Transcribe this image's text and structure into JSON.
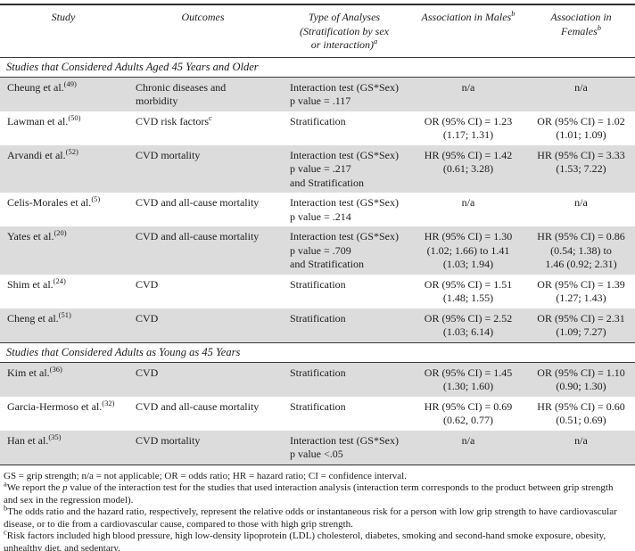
{
  "colors": {
    "row_shade": "#dcdcdc",
    "rule": "#2e2e2e",
    "background": "#ffffff"
  },
  "table": {
    "columns": [
      {
        "lines": [
          "Study"
        ],
        "sup": null
      },
      {
        "lines": [
          "Outcomes"
        ],
        "sup": null
      },
      {
        "lines": [
          "Type of Analyses",
          "(Stratification by sex",
          "or interaction)"
        ],
        "sup": "a"
      },
      {
        "lines": [
          "Association in Males"
        ],
        "sup": "b"
      },
      {
        "lines": [
          "Association in",
          "Females"
        ],
        "sup": "b"
      }
    ],
    "sections": [
      {
        "title": "Studies that Considered Adults Aged 45 Years and Older",
        "rows": [
          {
            "study": "Cheung et al.",
            "ref": "(49)",
            "outcomes": {
              "lines": [
                "Chronic diseases and",
                "morbidity"
              ],
              "sup": null
            },
            "analysis": [
              "Interaction test (GS*Sex)",
              "p value = .117"
            ],
            "males": [
              "n/a"
            ],
            "females": [
              "n/a"
            ]
          },
          {
            "study": "Lawman et al.",
            "ref": "(50)",
            "outcomes": {
              "lines": [
                "CVD risk factors"
              ],
              "sup": "c"
            },
            "analysis": [
              "Stratification"
            ],
            "males": [
              "OR (95% CI) = 1.23",
              "(1.17; 1.31)"
            ],
            "females": [
              "OR (95% CI) = 1.02",
              "(1.01; 1.09)"
            ]
          },
          {
            "study": "Arvandi et al.",
            "ref": "(52)",
            "outcomes": {
              "lines": [
                "CVD mortality"
              ],
              "sup": null
            },
            "analysis": [
              "Interaction test (GS*Sex)",
              "p value = .217",
              "and Stratification"
            ],
            "males": [
              "HR (95% CI) = 1.42",
              "(0.61; 3.28)"
            ],
            "females": [
              "HR (95% CI) = 3.33",
              "(1.53; 7.22)"
            ]
          },
          {
            "study": "Celis-Morales et al.",
            "ref": "(5)",
            "outcomes": {
              "lines": [
                "CVD and all-cause mortality"
              ],
              "sup": null
            },
            "analysis": [
              "Interaction test (GS*Sex)",
              "p value = .214"
            ],
            "males": [
              "n/a"
            ],
            "females": [
              "n/a"
            ]
          },
          {
            "study": "Yates et al.",
            "ref": "(20)",
            "outcomes": {
              "lines": [
                "CVD and all-cause mortality"
              ],
              "sup": null
            },
            "analysis": [
              "Interaction test (GS*Sex)",
              "p value = .709",
              "and Stratification"
            ],
            "males": [
              "HR (95% CI) = 1.30",
              "(1.02; 1.66) to 1.41",
              "(1.03; 1.94)"
            ],
            "females": [
              "HR (95% CI) = 0.86",
              "(0.54; 1.38) to",
              "1.46 (0.92; 2.31)"
            ]
          },
          {
            "study": "Shim et al.",
            "ref": "(24)",
            "outcomes": {
              "lines": [
                "CVD"
              ],
              "sup": null
            },
            "analysis": [
              "Stratification"
            ],
            "males": [
              "OR (95% CI) = 1.51",
              "(1.48; 1.55)"
            ],
            "females": [
              "OR (95% CI) = 1.39",
              "(1.27; 1.43)"
            ]
          },
          {
            "study": "Cheng et al.",
            "ref": "(51)",
            "outcomes": {
              "lines": [
                "CVD"
              ],
              "sup": null
            },
            "analysis": [
              "Stratification"
            ],
            "males": [
              "OR (95% CI) = 2.52",
              "(1.03; 6.14)"
            ],
            "females": [
              "OR (95% CI) = 2.31",
              "(1.09; 7.27)"
            ]
          }
        ]
      },
      {
        "title": "Studies that Considered Adults as Young as 45 Years",
        "rows": [
          {
            "study": "Kim et al.",
            "ref": "(36)",
            "outcomes": {
              "lines": [
                "CVD"
              ],
              "sup": null
            },
            "analysis": [
              "Stratification"
            ],
            "males": [
              "OR (95% CI) = 1.45",
              "(1.30; 1.60)"
            ],
            "females": [
              "OR (95% CI) = 1.10",
              "(0.90; 1.30)"
            ]
          },
          {
            "study": "Garcia-Hermoso et al.",
            "ref": "(32)",
            "outcomes": {
              "lines": [
                "CVD and all-cause mortality"
              ],
              "sup": null
            },
            "analysis": [
              "Stratification"
            ],
            "males": [
              "HR (95% CI) = 0.69",
              "(0.62, 0.77)"
            ],
            "females": [
              "HR (95% CI) = 0.60",
              "(0.51; 0.69)"
            ]
          },
          {
            "study": "Han et al.",
            "ref": "(35)",
            "outcomes": {
              "lines": [
                "CVD mortality"
              ],
              "sup": null
            },
            "analysis": [
              "Interaction test (GS*Sex)",
              "p value <.05"
            ],
            "males": [
              "n/a"
            ],
            "females": [
              "n/a"
            ]
          }
        ]
      }
    ]
  },
  "footnotes": [
    [
      {
        "text": "GS = grip strength; n/a = not applicable; OR = odds ratio; HR = hazard ratio; CI = confidence interval."
      }
    ],
    [
      {
        "sup": "a"
      },
      {
        "text": "We report the "
      },
      {
        "italic": "p"
      },
      {
        "text": " value of the interaction test for the studies that used interaction analysis (interaction term corresponds to the product between grip strength and sex in the regression model)."
      }
    ],
    [
      {
        "sup": "b"
      },
      {
        "text": "The odds ratio and the hazard ratio, respectively, represent the relative odds or instantaneous risk for a person with low grip strength to have cardiovascular disease, or to die from a cardiovascular cause, compared to those with high grip strength."
      }
    ],
    [
      {
        "sup": "c"
      },
      {
        "text": "Risk factors included high blood pressure, high low-density lipoprotein (LDL) cholesterol, diabetes, smoking and second-hand smoke exposure, obesity, unhealthy diet, and sedentary."
      }
    ]
  ]
}
